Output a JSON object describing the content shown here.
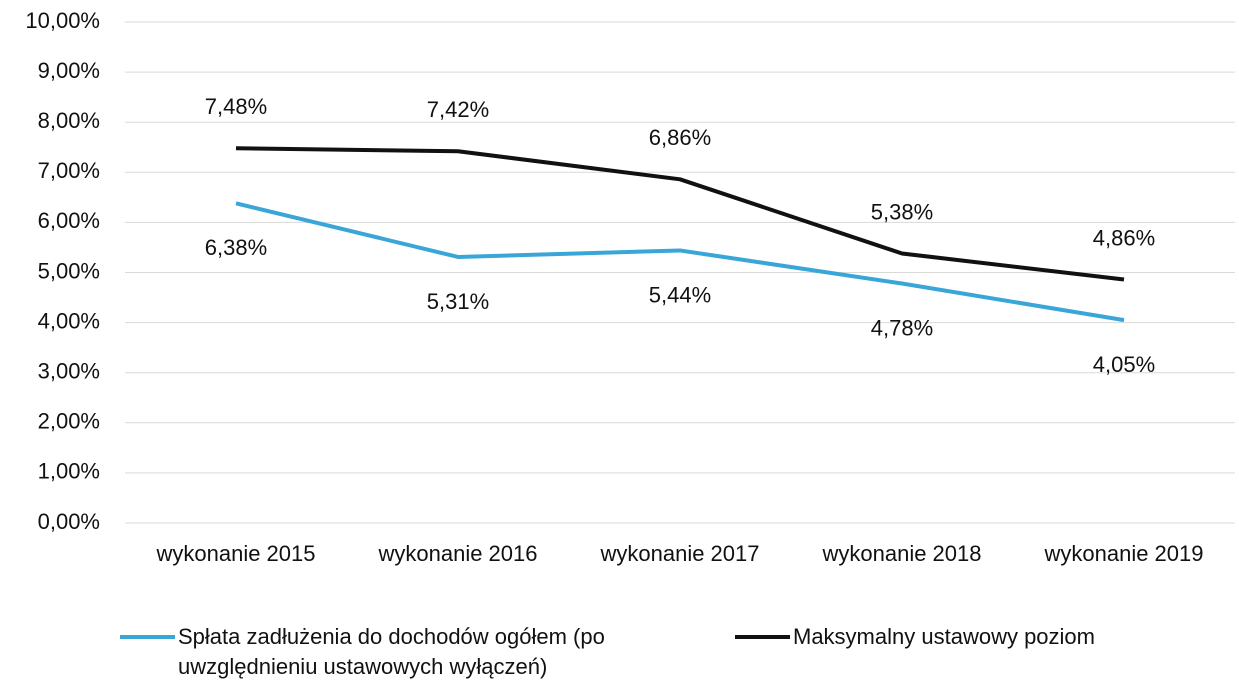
{
  "chart_data": {
    "type": "line",
    "categories": [
      "wykonanie 2015",
      "wykonanie 2016",
      "wykonanie 2017",
      "wykonanie 2018",
      "wykonanie 2019"
    ],
    "series": [
      {
        "name": "Spłata zadłużenia do dochodów ogółem (po uwzględnieniu ustawowych wyłączeń)",
        "color": "#3aa6d8",
        "values": [
          6.38,
          5.31,
          5.44,
          4.78,
          4.05
        ],
        "value_labels": [
          "6,38%",
          "5,31%",
          "5,44%",
          "4,78%",
          "4,05%"
        ]
      },
      {
        "name": "Maksymalny ustawowy poziom",
        "color": "#111111",
        "values": [
          7.48,
          7.42,
          6.86,
          5.38,
          4.86
        ],
        "value_labels": [
          "7,48%",
          "7,42%",
          "6,86%",
          "5,38%",
          "4,86%"
        ]
      }
    ],
    "ylim": [
      0,
      10
    ],
    "yticks": [
      {
        "value": 0,
        "label": "0,00%"
      },
      {
        "value": 1,
        "label": "1,00%"
      },
      {
        "value": 2,
        "label": "2,00%"
      },
      {
        "value": 3,
        "label": "3,00%"
      },
      {
        "value": 4,
        "label": "4,00%"
      },
      {
        "value": 5,
        "label": "5,00%"
      },
      {
        "value": 6,
        "label": "6,00%"
      },
      {
        "value": 7,
        "label": "7,00%"
      },
      {
        "value": 8,
        "label": "8,00%"
      },
      {
        "value": 9,
        "label": "9,00%"
      },
      {
        "value": 10,
        "label": "10,00%"
      }
    ],
    "grid": true
  }
}
